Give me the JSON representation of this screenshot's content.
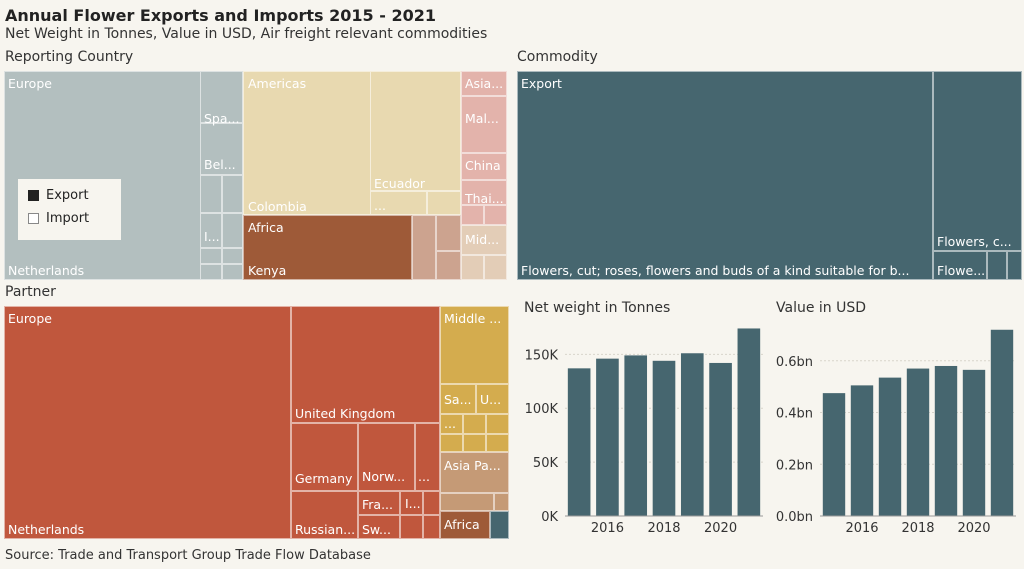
{
  "header": {
    "title": "Annual Flower Exports and Imports 2015 - 2021",
    "subtitle": "Net Weight in Tonnes, Value in USD, Air freight relevant commodities"
  },
  "reporting_country": {
    "section_title": "Reporting Country",
    "labels": {
      "europe": "Europe",
      "netherlands": "Netherlands",
      "spain": "Spa...",
      "belgium": "Bel...",
      "i_trunc": "I...",
      "americas": "Americas",
      "colombia": "Colombia",
      "ecuador": "Ecuador",
      "ellipsis": "...",
      "africa": "Africa",
      "kenya": "Kenya",
      "asia": "Asia...",
      "malaysia": "Mal...",
      "china": "China",
      "thailand": "Thai...",
      "middle": "Mid..."
    }
  },
  "legend": {
    "export": "Export",
    "import": "Import"
  },
  "commodity": {
    "section_title": "Commodity",
    "labels": {
      "export": "Export",
      "roses": "Flowers, cut; roses, flowers and buds of a kind suitable for b...",
      "flowers_c": "Flowers, c...",
      "flowe": "Flowe..."
    }
  },
  "partner": {
    "section_title": "Partner",
    "labels": {
      "europe": "Europe",
      "netherlands": "Netherlands",
      "uk": "United Kingdom",
      "germany": "Germany",
      "norway": "Norw...",
      "ellipsis": "...",
      "france": "Fra...",
      "i_trunc": "I...",
      "russia": "Russian...",
      "sweden": "Sw...",
      "middle_east": "Middle ...",
      "saudi": "Sa...",
      "uae": "U...",
      "ellipsis2": "...",
      "asia_pacific": "Asia Pa...",
      "africa": "Africa"
    }
  },
  "colors": {
    "europe": "#b3bfbf",
    "americas": "#e8d9b0",
    "africa": "#9e5a38",
    "asia": "#e3b3ab",
    "commodity": "#46666f",
    "partner_europe": "#c0573d",
    "middle_east": "#d4ac4e",
    "asia_pacific": "#c59a76",
    "partner_africa": "#9e5a38",
    "bar": "#46666f"
  },
  "chart_data": [
    {
      "type": "bar",
      "title": "Net weight in Tonnes",
      "x": [
        2015,
        2016,
        2017,
        2018,
        2019,
        2020,
        2021
      ],
      "values": [
        137000,
        146000,
        149000,
        144000,
        151000,
        142000,
        174000
      ],
      "xticks": [
        "2016",
        "2018",
        "2020"
      ],
      "yticks": [
        "0K",
        "50K",
        "100K",
        "150K"
      ],
      "ylim": [
        0,
        180000
      ]
    },
    {
      "type": "bar",
      "title": "Value in USD",
      "x": [
        2015,
        2016,
        2017,
        2018,
        2019,
        2020,
        2021
      ],
      "values": [
        0.475,
        0.505,
        0.535,
        0.57,
        0.58,
        0.565,
        0.72
      ],
      "xticks": [
        "2016",
        "2018",
        "2020"
      ],
      "yticks": [
        "0.0bn",
        "0.2bn",
        "0.4bn",
        "0.6bn"
      ],
      "ylim": [
        0,
        0.75
      ]
    }
  ],
  "source": "Source: Trade and Transport Group Trade Flow Database"
}
